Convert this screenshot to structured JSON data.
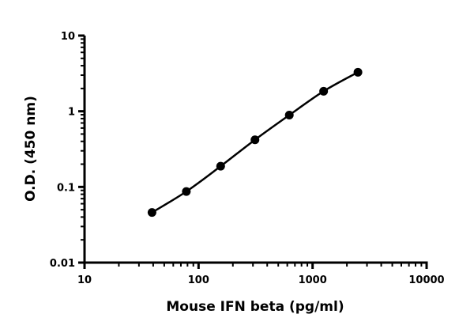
{
  "chart_data": {
    "type": "line",
    "title": "",
    "xlabel": "Mouse IFN beta (pg/ml)",
    "ylabel": "O.D. (450 nm)",
    "xscale": "log",
    "yscale": "log",
    "xlim": [
      10,
      10000
    ],
    "ylim": [
      0.01,
      10
    ],
    "xticks": [
      "10",
      "100",
      "1000",
      "10000"
    ],
    "yticks": [
      "0.01",
      "0.1",
      "1",
      "10"
    ],
    "grid": false,
    "legend": "none",
    "series": [
      {
        "x": [
          39.06,
          78.13,
          156.25,
          312.5,
          625,
          1250,
          2500
        ],
        "y": [
          0.046,
          0.087,
          0.188,
          0.42,
          0.89,
          1.84,
          3.28
        ],
        "marker": "filled-circle",
        "color": "#000000",
        "fit_curve": true
      }
    ]
  }
}
